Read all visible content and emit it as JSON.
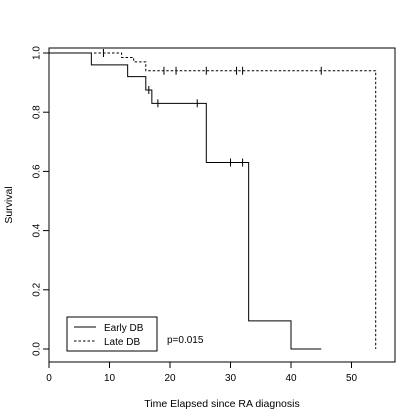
{
  "chart_data": {
    "type": "line",
    "subtype": "kaplan-meier step curve",
    "title": "",
    "xlabel": "Time Elapsed since RA diagnosis",
    "ylabel": "Survival",
    "xlim": [
      0,
      55
    ],
    "ylim": [
      0,
      1
    ],
    "x_ticks": [
      0,
      10,
      20,
      30,
      40,
      50
    ],
    "y_ticks": [
      0.0,
      0.2,
      0.4,
      0.6,
      0.8,
      1.0
    ],
    "x_tick_labels": [
      "0",
      "10",
      "20",
      "30",
      "40",
      "50"
    ],
    "y_tick_labels": [
      "0.0",
      "0.2",
      "0.4",
      "0.6",
      "0.8",
      "1.0"
    ],
    "grid": false,
    "legend_position": "bottom-left",
    "series": [
      {
        "name": "Early DB",
        "line_style": "solid",
        "steps": [
          {
            "x": 0,
            "y": 1.0
          },
          {
            "x": 7,
            "y": 0.96
          },
          {
            "x": 13,
            "y": 0.92
          },
          {
            "x": 16,
            "y": 0.875
          },
          {
            "x": 17,
            "y": 0.83
          },
          {
            "x": 26,
            "y": 0.63
          },
          {
            "x": 33,
            "y": 0.095
          },
          {
            "x": 40,
            "y": 0.0
          },
          {
            "x": 45,
            "y": 0.0
          }
        ],
        "censored": [
          {
            "x": 16.5,
            "y": 0.875
          },
          {
            "x": 18,
            "y": 0.83
          },
          {
            "x": 24.5,
            "y": 0.83
          },
          {
            "x": 30,
            "y": 0.63
          },
          {
            "x": 32,
            "y": 0.63
          }
        ]
      },
      {
        "name": "Late DB",
        "line_style": "dashed",
        "steps": [
          {
            "x": 0,
            "y": 1.0
          },
          {
            "x": 12,
            "y": 0.985
          },
          {
            "x": 14,
            "y": 0.97
          },
          {
            "x": 16,
            "y": 0.94
          },
          {
            "x": 54,
            "y": 0.0
          }
        ],
        "censored": [
          {
            "x": 9,
            "y": 1.0
          },
          {
            "x": 19,
            "y": 0.94
          },
          {
            "x": 21,
            "y": 0.94
          },
          {
            "x": 26,
            "y": 0.94
          },
          {
            "x": 31,
            "y": 0.94
          },
          {
            "x": 32,
            "y": 0.94
          },
          {
            "x": 45,
            "y": 0.94
          }
        ]
      }
    ],
    "annotations": [
      {
        "text": "p=0.015"
      }
    ]
  }
}
